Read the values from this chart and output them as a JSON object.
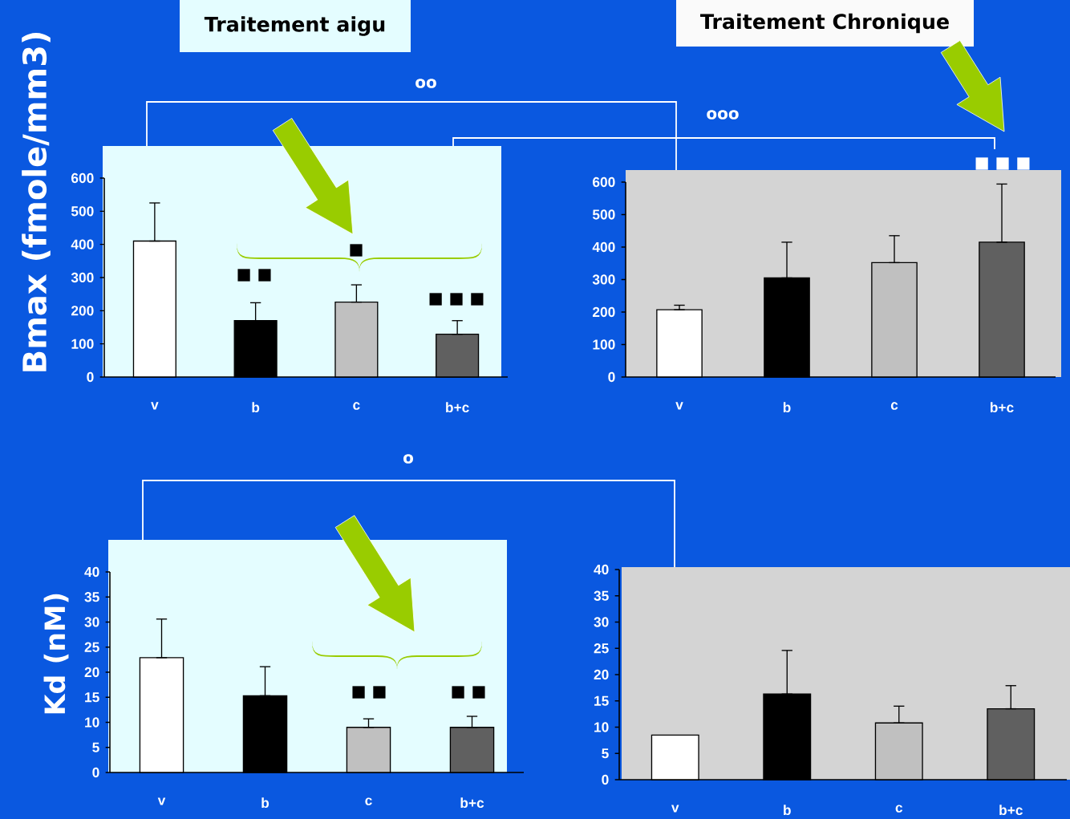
{
  "chart_data": [
    {
      "type": "bar",
      "title": "Traitement aigu",
      "ylabel": "Bmax (fmole/mm3)",
      "categories": [
        "v",
        "b",
        "c",
        "b+c"
      ],
      "values": [
        410,
        170,
        226,
        129
      ],
      "errors": [
        [
          410,
          525
        ],
        [
          170,
          224
        ],
        [
          226,
          278
        ],
        [
          129,
          170
        ]
      ],
      "colors": [
        "#ffffff",
        "#000000",
        "#c0c0c0",
        "#606060"
      ],
      "ylim": [
        0,
        600
      ],
      "yticks": [
        0,
        100,
        200,
        300,
        400,
        500,
        600
      ],
      "annotations": [
        "oo",
        "ooo",
        "■ ■",
        "■",
        "■ ■ ■"
      ]
    },
    {
      "type": "bar",
      "title": "Traitement Chronique",
      "categories": [
        "v",
        "b",
        "c",
        "b+c"
      ],
      "values": [
        207,
        305,
        352,
        415
      ],
      "errors": [
        [
          207,
          221
        ],
        [
          305,
          415
        ],
        [
          352,
          435
        ],
        [
          415,
          594
        ]
      ],
      "colors": [
        "#ffffff",
        "#000000",
        "#c0c0c0",
        "#606060"
      ],
      "ylim": [
        0,
        600
      ],
      "yticks": [
        0,
        100,
        200,
        300,
        400,
        500,
        600
      ],
      "annotations": [
        "■ ■ ■"
      ]
    },
    {
      "type": "bar",
      "ylabel": "Kd (nM)",
      "categories": [
        "v",
        "b",
        "c",
        "b+c"
      ],
      "values": [
        22.9,
        15.3,
        9.0,
        9.0
      ],
      "errors": [
        [
          22.9,
          30.6
        ],
        [
          15.3,
          21.1
        ],
        [
          9.0,
          10.7
        ],
        [
          9.0,
          11.2
        ]
      ],
      "colors": [
        "#ffffff",
        "#000000",
        "#c0c0c0",
        "#606060"
      ],
      "ylim": [
        0,
        40
      ],
      "yticks": [
        0,
        5,
        10,
        15,
        20,
        25,
        30,
        35,
        40
      ],
      "annotations": [
        "o",
        "■ ■",
        "■ ■"
      ]
    },
    {
      "type": "bar",
      "categories": [
        "v",
        "b",
        "c",
        "b+c"
      ],
      "values": [
        8.5,
        16.3,
        10.8,
        13.5
      ],
      "errors": [
        null,
        [
          16.3,
          24.6
        ],
        [
          10.8,
          14.0
        ],
        [
          13.5,
          17.9
        ]
      ],
      "colors": [
        "#ffffff",
        "#000000",
        "#c0c0c0",
        "#606060"
      ],
      "ylim": [
        0,
        40
      ],
      "yticks": [
        0,
        5,
        10,
        15,
        20,
        25,
        30,
        35,
        40
      ]
    }
  ]
}
